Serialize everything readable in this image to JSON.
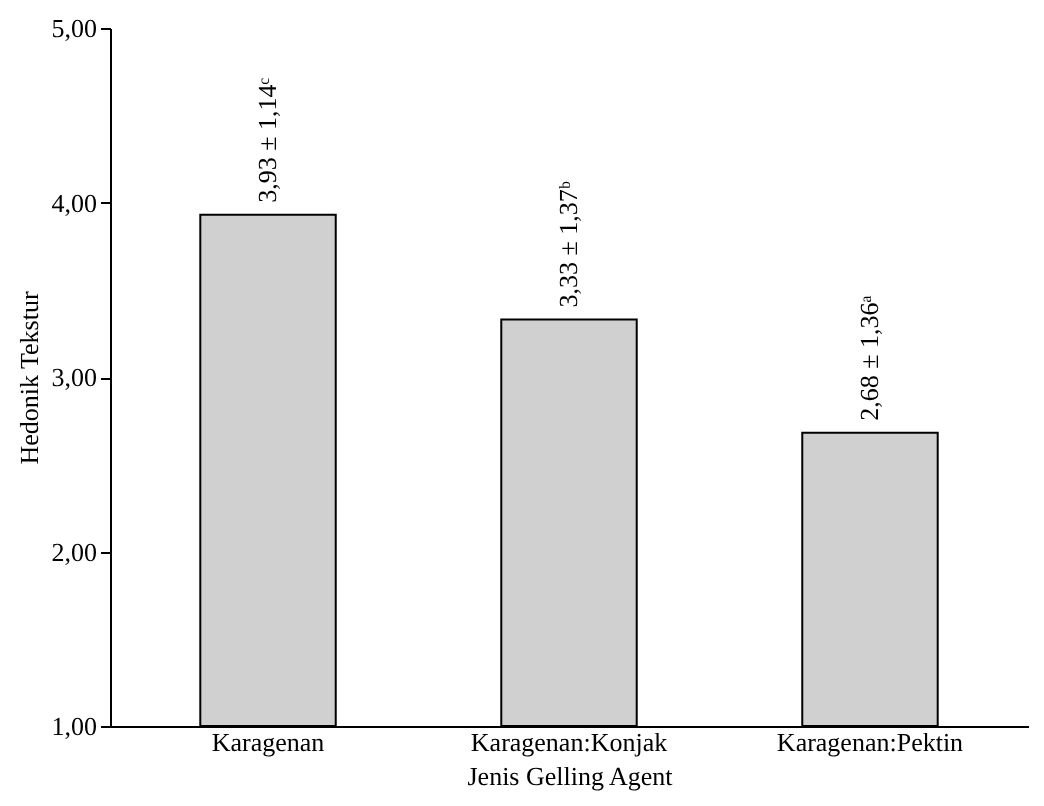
{
  "chart_data": {
    "type": "bar",
    "xlabel": "Jenis Gelling Agent",
    "ylabel": "Hedonik Tekstur",
    "categories": [
      "Karagenan",
      "Karagenan:Konjak",
      "Karagenan:Pektin"
    ],
    "values": [
      3.93,
      3.33,
      2.68
    ],
    "value_labels": [
      "3,93 ± 1,14ᶜ",
      "3,33 ± 1,37ᵇ",
      "2,68 ± 1,36ᵃ"
    ],
    "color": "#d0d0d0",
    "ylim": [
      1,
      5
    ],
    "yticks": [
      {
        "value": 1,
        "label": "1,00"
      },
      {
        "value": 2,
        "label": "2,00"
      },
      {
        "value": 3,
        "label": "3,00"
      },
      {
        "value": 4,
        "label": "4,00"
      },
      {
        "value": 5,
        "label": "5,00"
      }
    ],
    "grid": false
  }
}
